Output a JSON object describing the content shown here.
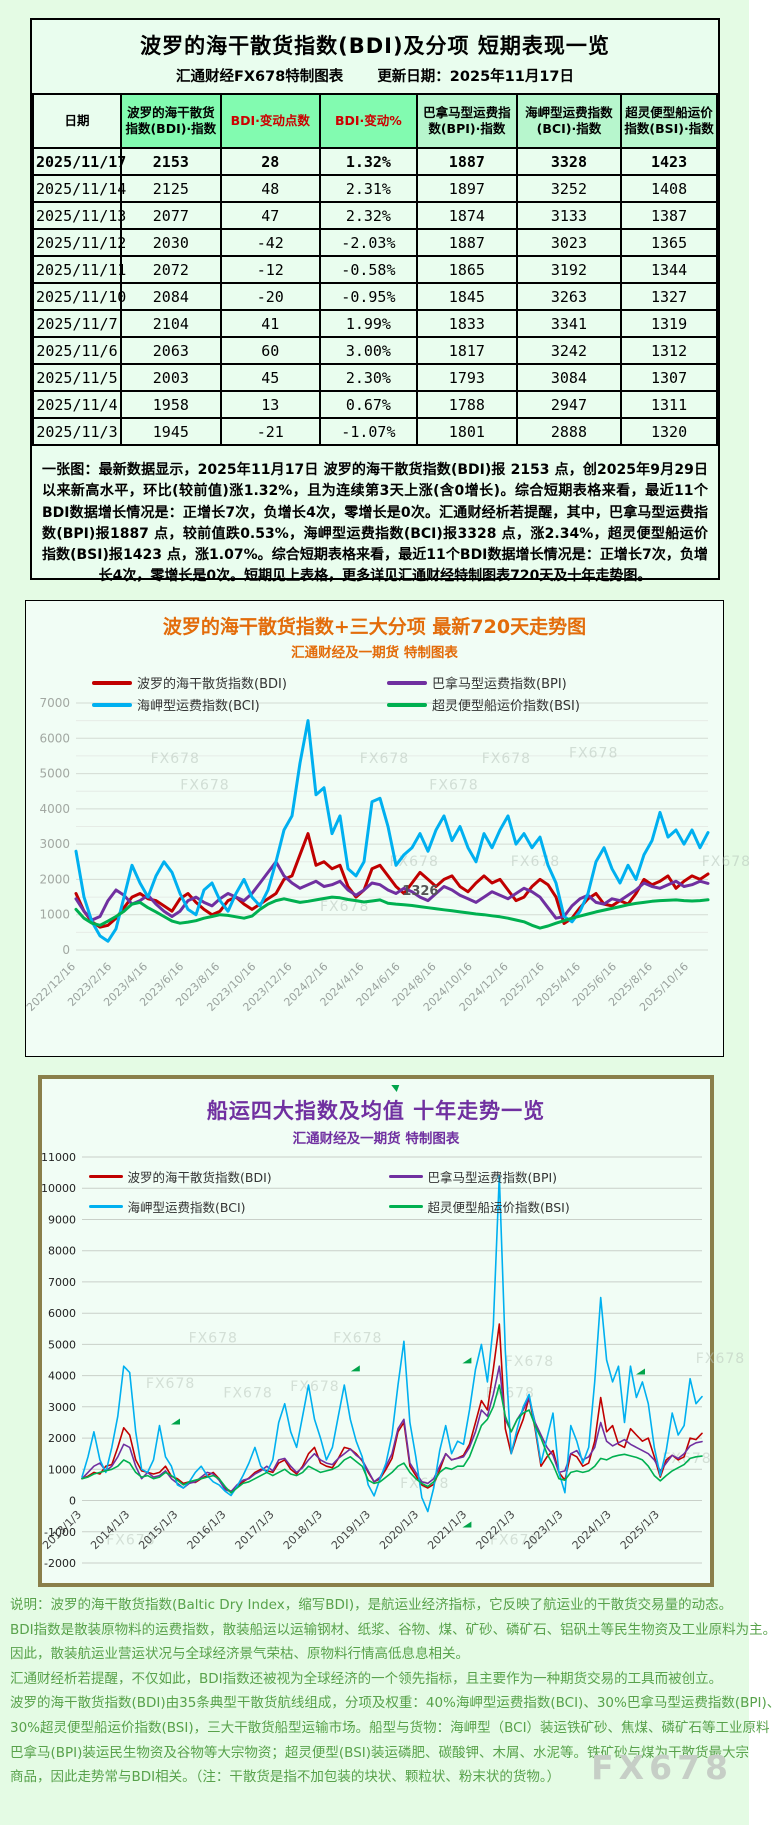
{
  "page": {
    "background": "#e4fbe4"
  },
  "colors": {
    "bdi": "#c00000",
    "bpi": "#7030a0",
    "bci": "#00b0f0",
    "bsi": "#00b050",
    "table_header_green": "#82fbb0",
    "table_header_light_green": "#b7f6cd",
    "title720": "#e36c0a",
    "title10y": "#7030a0",
    "red_header_text": "#cc0000"
  },
  "table_panel": {
    "title": "波罗的海干散货指数(BDI)及分项 短期表现一览",
    "subtitle_left": "汇通财经FX678特制图表",
    "subtitle_right": "更新日期：2025年11月17日",
    "columns": [
      {
        "label": "日期",
        "bg": "#e9fdee",
        "fg": "#000000"
      },
      {
        "label": "波罗的海干散货指数(BDI)·指数",
        "bg": "#82fbb0",
        "fg": "#000000"
      },
      {
        "label": "BDI·变动点数",
        "bg": "#82fbb0",
        "fg": "#cc0000"
      },
      {
        "label": "BDI·变动%",
        "bg": "#82fbb0",
        "fg": "#cc0000"
      },
      {
        "label": "巴拿马型运费指数(BPI)·指数",
        "bg": "#b7f6cd",
        "fg": "#000000"
      },
      {
        "label": "海岬型运费指数(BCI)·指数",
        "bg": "#b7f6cd",
        "fg": "#000000"
      },
      {
        "label": "超灵便型船运价指数(BSI)·指数",
        "bg": "#b7f6cd",
        "fg": "#000000"
      }
    ],
    "rows": [
      [
        "2025/11/17",
        "2153",
        "28",
        "1.32%",
        "1887",
        "3328",
        "1423"
      ],
      [
        "2025/11/14",
        "2125",
        "48",
        "2.31%",
        "1897",
        "3252",
        "1408"
      ],
      [
        "2025/11/13",
        "2077",
        "47",
        "2.32%",
        "1874",
        "3133",
        "1387"
      ],
      [
        "2025/11/12",
        "2030",
        "-42",
        "-2.03%",
        "1887",
        "3023",
        "1365"
      ],
      [
        "2025/11/11",
        "2072",
        "-12",
        "-0.58%",
        "1865",
        "3192",
        "1344"
      ],
      [
        "2025/11/10",
        "2084",
        "-20",
        "-0.95%",
        "1845",
        "3263",
        "1327"
      ],
      [
        "2025/11/7",
        "2104",
        "41",
        "1.99%",
        "1833",
        "3341",
        "1319"
      ],
      [
        "2025/11/6",
        "2063",
        "60",
        "3.00%",
        "1817",
        "3242",
        "1312"
      ],
      [
        "2025/11/5",
        "2003",
        "45",
        "2.30%",
        "1793",
        "3084",
        "1307"
      ],
      [
        "2025/11/4",
        "1958",
        "13",
        "0.67%",
        "1788",
        "2947",
        "1311"
      ],
      [
        "2025/11/3",
        "1945",
        "-21",
        "-1.07%",
        "1801",
        "2888",
        "1320"
      ]
    ],
    "note": "一张图：最新数据显示，2025年11月17日 波罗的海干散货指数(BDI)报 2153 点，创2025年9月29日以来新高水平，环比(较前值)涨1.32%，且为连续第3天上涨(含0增长)。综合短期表格来看，最近11个BDI数据增长情况是：正增长7次，负增长4次，零增长是0次。汇通财经析若提醒，其中，巴拿马型运费指数(BPI)报1887 点，较前值跌0.53%，海岬型运费指数(BCI)报3328 点，涨2.34%，超灵便型船运价指数(BSI)报1423 点，涨1.07%。综合短期表格来看，最近11个BDI数据增长情况是：正增长7次，负增长4次，零增长是0次。短期见上表格，更多详见汇通财经特制图表720天及十年走势图。"
  },
  "chart_data": [
    {
      "id": "chart720",
      "type": "line",
      "title": "波罗的海干散货指数+三大分项  最新720天走势图",
      "subtitle": "汇通财经及一期货  特制图表",
      "watermark": "FX678",
      "ylim": [
        0,
        7000
      ],
      "ytick_step": 1000,
      "grid": true,
      "legend_position": "top",
      "x_range": [
        "2022/12/16",
        "2025/11/17"
      ],
      "x_labels": [
        "2022/12/16",
        "2023/2/16",
        "2023/4/16",
        "2023/6/16",
        "2023/8/16",
        "2023/10/16",
        "2023/12/16",
        "2024/2/16",
        "2024/4/16",
        "2024/6/16",
        "2024/8/16",
        "2024/10/16",
        "2024/12/16",
        "2025/2/16",
        "2025/4/16",
        "2025/6/16",
        "2025/8/16",
        "2025/10/16"
      ],
      "annotations": [
        {
          "text": "1326",
          "x_frac": 0.545,
          "value": 1560
        }
      ],
      "series": [
        {
          "key": "bdi",
          "name": "波罗的海干散货指数(BDI)",
          "color": "#c00000",
          "values": [
            1600,
            1100,
            800,
            650,
            700,
            900,
            1200,
            1500,
            1600,
            1450,
            1400,
            1250,
            1100,
            1450,
            1600,
            1350,
            1150,
            1000,
            1100,
            1400,
            1500,
            1300,
            1150,
            1300,
            1450,
            1600,
            2000,
            2100,
            2700,
            3300,
            2400,
            2500,
            2300,
            2400,
            1800,
            1500,
            1700,
            2300,
            2400,
            2100,
            1800,
            1600,
            1900,
            2200,
            2000,
            1800,
            2000,
            2100,
            1800,
            1650,
            1900,
            2100,
            1900,
            2000,
            1700,
            1400,
            1500,
            1800,
            2000,
            1850,
            1500,
            750,
            900,
            1200,
            1450,
            1600,
            1300,
            1250,
            1400,
            1300,
            1600,
            2000,
            1850,
            1950,
            2100,
            1750,
            1950,
            2100,
            2000,
            2153
          ]
        },
        {
          "key": "bpi",
          "name": "巴拿马型运费指数(BPI)",
          "color": "#7030a0",
          "values": [
            1450,
            1100,
            850,
            950,
            1400,
            1700,
            1550,
            1300,
            1400,
            1550,
            1300,
            1100,
            950,
            1100,
            1400,
            1500,
            1350,
            1250,
            1450,
            1600,
            1500,
            1400,
            1600,
            1900,
            2200,
            2500,
            2100,
            1900,
            1750,
            1850,
            1950,
            1800,
            1850,
            1950,
            1700,
            1550,
            1700,
            1900,
            1850,
            1700,
            1600,
            1750,
            1650,
            1500,
            1400,
            1600,
            1800,
            1700,
            1550,
            1450,
            1350,
            1500,
            1650,
            1550,
            1450,
            1600,
            1750,
            1650,
            1500,
            1200,
            900,
            950,
            1250,
            1450,
            1550,
            1350,
            1300,
            1450,
            1400,
            1550,
            1700,
            1900,
            1800,
            1750,
            1850,
            1950,
            1800,
            1850,
            1950,
            1887
          ]
        },
        {
          "key": "bci",
          "name": "海岬型运费指数(BCI)",
          "color": "#00b0f0",
          "values": [
            2800,
            1500,
            800,
            400,
            250,
            600,
            1500,
            2400,
            1900,
            1500,
            2100,
            2500,
            2200,
            1600,
            1150,
            1000,
            1700,
            1900,
            1400,
            1100,
            1600,
            2000,
            1500,
            1250,
            1700,
            2500,
            3400,
            3800,
            5300,
            6500,
            4400,
            4600,
            3300,
            3800,
            2300,
            2100,
            2500,
            4200,
            4300,
            3500,
            2400,
            2700,
            2900,
            3300,
            2800,
            3400,
            3800,
            3100,
            3500,
            2900,
            2500,
            3300,
            2900,
            3400,
            3800,
            3000,
            3300,
            2900,
            3200,
            2400,
            1900,
            950,
            800,
            1100,
            1600,
            2500,
            2900,
            2300,
            1900,
            2400,
            2000,
            2700,
            3100,
            3900,
            3200,
            3400,
            3000,
            3400,
            2900,
            3328
          ]
        },
        {
          "key": "bsi",
          "name": "超灵便型船运价指数(BSI)",
          "color": "#00b050",
          "values": [
            1150,
            900,
            760,
            700,
            820,
            950,
            1100,
            1300,
            1350,
            1200,
            1080,
            950,
            820,
            760,
            790,
            830,
            900,
            950,
            1000,
            980,
            940,
            900,
            960,
            1150,
            1300,
            1400,
            1450,
            1400,
            1350,
            1380,
            1420,
            1460,
            1500,
            1480,
            1430,
            1400,
            1360,
            1390,
            1420,
            1326,
            1300,
            1280,
            1260,
            1230,
            1200,
            1170,
            1140,
            1110,
            1080,
            1050,
            1020,
            1000,
            970,
            940,
            900,
            850,
            800,
            700,
            620,
            680,
            760,
            830,
            900,
            960,
            1020,
            1080,
            1130,
            1180,
            1230,
            1280,
            1320,
            1350,
            1380,
            1400,
            1410,
            1420,
            1400,
            1390,
            1400,
            1423
          ]
        }
      ]
    },
    {
      "id": "chart10y",
      "type": "line",
      "title": "船运四大指数及均值 十年走势一览",
      "subtitle": "汇通财经及一期货 特制图表",
      "watermark": "FX678",
      "ylim": [
        -2000,
        11000
      ],
      "ytick_step": 1000,
      "grid": true,
      "legend_position": "top",
      "x_range": [
        "2013/1/3",
        "2025/11/17"
      ],
      "x_labels": [
        "2013/1/3",
        "2014/1/3",
        "2015/1/3",
        "2016/1/3",
        "2017/1/3",
        "2018/1/3",
        "2019/1/3",
        "2020/1/3",
        "2021/1/3",
        "2022/1/3",
        "2023/1/3",
        "2024/1/3",
        "2025/1/3"
      ],
      "annotations": [],
      "series": [
        {
          "key": "bdi",
          "name": "波罗的海干散货指数(BDI)",
          "color": "#c00000",
          "values": [
            700,
            780,
            900,
            850,
            1100,
            1150,
            1700,
            2330,
            2100,
            1300,
            950,
            900,
            850,
            900,
            1100,
            780,
            700,
            550,
            600,
            580,
            700,
            800,
            900,
            700,
            400,
            290,
            450,
            600,
            720,
            900,
            1000,
            960,
            900,
            1200,
            1300,
            1000,
            850,
            1100,
            1500,
            1700,
            1200,
            1100,
            1050,
            1350,
            1700,
            1650,
            1500,
            1270,
            900,
            600,
            700,
            1000,
            1350,
            2200,
            2500,
            1100,
            800,
            500,
            400,
            520,
            980,
            1500,
            1300,
            1360,
            1450,
            1800,
            2500,
            3200,
            2900,
            4200,
            5650,
            2300,
            1500,
            2100,
            2600,
            3300,
            2300,
            1100,
            1400,
            1600,
            900,
            650,
            1500,
            1400,
            1100,
            1200,
            1900,
            3300,
            2200,
            2400,
            1800,
            1700,
            2300,
            2100,
            1900,
            2000,
            1400,
            750,
            1300,
            1450,
            1300,
            1400,
            2000,
            1950,
            2153
          ]
        },
        {
          "key": "bpi",
          "name": "巴拿马型运费指数(BPI)",
          "color": "#7030a0",
          "values": [
            700,
            900,
            1100,
            1200,
            950,
            1100,
            1400,
            1800,
            1700,
            1100,
            700,
            900,
            750,
            800,
            950,
            700,
            550,
            400,
            550,
            600,
            750,
            900,
            850,
            650,
            350,
            282,
            500,
            650,
            700,
            850,
            950,
            1100,
            950,
            1300,
            1350,
            1100,
            900,
            1050,
            1300,
            1500,
            1300,
            1200,
            1150,
            1350,
            1500,
            1650,
            1450,
            1300,
            950,
            600,
            750,
            1100,
            1500,
            2300,
            2600,
            1200,
            900,
            600,
            550,
            700,
            1100,
            1500,
            1300,
            1350,
            1400,
            1700,
            2200,
            2900,
            2700,
            3400,
            4300,
            2600,
            2200,
            2600,
            2900,
            3300,
            2500,
            2100,
            1700,
            1450,
            900,
            950,
            1500,
            1600,
            1300,
            1400,
            1700,
            2500,
            1900,
            1750,
            1850,
            1950,
            1800,
            1700,
            1600,
            1500,
            1300,
            950,
            1200,
            1450,
            1350,
            1500,
            1750,
            1850,
            1887
          ]
        },
        {
          "key": "bci",
          "name": "海岬型运费指数(BCI)",
          "color": "#00b0f0",
          "values": [
            750,
            1400,
            2200,
            1300,
            900,
            1700,
            2700,
            4300,
            4100,
            2200,
            1000,
            900,
            1300,
            2400,
            1400,
            1100,
            500,
            400,
            600,
            900,
            1100,
            800,
            600,
            500,
            300,
            160,
            450,
            800,
            1200,
            1700,
            1100,
            900,
            1300,
            2500,
            3100,
            2200,
            1700,
            2700,
            3700,
            2600,
            2000,
            1300,
            1700,
            2700,
            3700,
            2600,
            1900,
            1400,
            500,
            150,
            700,
            1200,
            2100,
            3700,
            5100,
            2500,
            1400,
            100,
            -350,
            400,
            1600,
            2400,
            1500,
            1900,
            1800,
            2900,
            4200,
            5000,
            3800,
            5600,
            10400,
            4800,
            1500,
            2300,
            3000,
            3400,
            2400,
            1200,
            2000,
            2800,
            900,
            250,
            2400,
            1900,
            1200,
            1700,
            3800,
            6500,
            4500,
            3800,
            4300,
            2500,
            4300,
            3300,
            3800,
            3100,
            1700,
            800,
            1600,
            2800,
            2100,
            2400,
            3900,
            3100,
            3328
          ]
        },
        {
          "key": "bsi",
          "name": "超灵便型船运价指数(BSI)",
          "color": "#00b050",
          "values": [
            700,
            750,
            850,
            900,
            950,
            1000,
            1100,
            1300,
            1200,
            900,
            750,
            800,
            700,
            750,
            900,
            800,
            650,
            500,
            600,
            650,
            700,
            750,
            800,
            700,
            450,
            243,
            400,
            550,
            600,
            700,
            800,
            900,
            800,
            900,
            1000,
            850,
            800,
            900,
            1100,
            1000,
            900,
            950,
            1000,
            1100,
            1300,
            1400,
            1250,
            1100,
            650,
            550,
            600,
            750,
            900,
            1100,
            1200,
            900,
            700,
            550,
            450,
            600,
            900,
            1050,
            1000,
            1100,
            1100,
            1400,
            1900,
            2400,
            2600,
            3000,
            3700,
            2700,
            2200,
            2600,
            2800,
            2900,
            2400,
            2000,
            1500,
            1150,
            700,
            650,
            900,
            950,
            900,
            950,
            1100,
            1350,
            1300,
            1400,
            1450,
            1480,
            1430,
            1380,
            1300,
            1100,
            800,
            630,
            800,
            950,
            1050,
            1150,
            1350,
            1400,
            1423
          ]
        }
      ]
    }
  ],
  "footer": {
    "lines": [
      "说明：波罗的海干散货指数(Baltic Dry Index，缩写BDI)，是航运业经济指标，它反映了航运业的干散货交易量的动态。",
      "BDI指数是散装原物料的运费指数，散装船运以运输钢材、纸浆、谷物、煤、矿砂、磷矿石、铝矾土等民生物资及工业原料为主。",
      "因此，散装航运业营运状况与全球经济景气荣枯、原物料行情高低息息相关。",
      "汇通财经析若提醒，不仅如此，BDI指数还被视为全球经济的一个领先指标，且主要作为一种期货交易的工具而被创立。",
      "波罗的海干散货指数(BDI)由35条典型干散货航线组成，分项及权重：40%海岬型运费指数(BCI)、30%巴拿马型运费指数(BPI)、",
      "30%超灵便型船运价指数(BSI)，三大干散货船型运输市场。船型与货物：海岬型（BCI）装运铁矿砂、焦煤、磷矿石等工业原料",
      "巴拿马(BPI)装运民生物资及谷物等大宗物资；超灵便型(BSI)装运磷肥、碳酸钾、木屑、水泥等。铁矿砂与煤为干散货最大宗",
      "商品，因此走势常与BDI相关。（注：干散货是指不加包装的块状、颗粒状、粉末状的货物。）"
    ],
    "watermark": "FX678"
  }
}
